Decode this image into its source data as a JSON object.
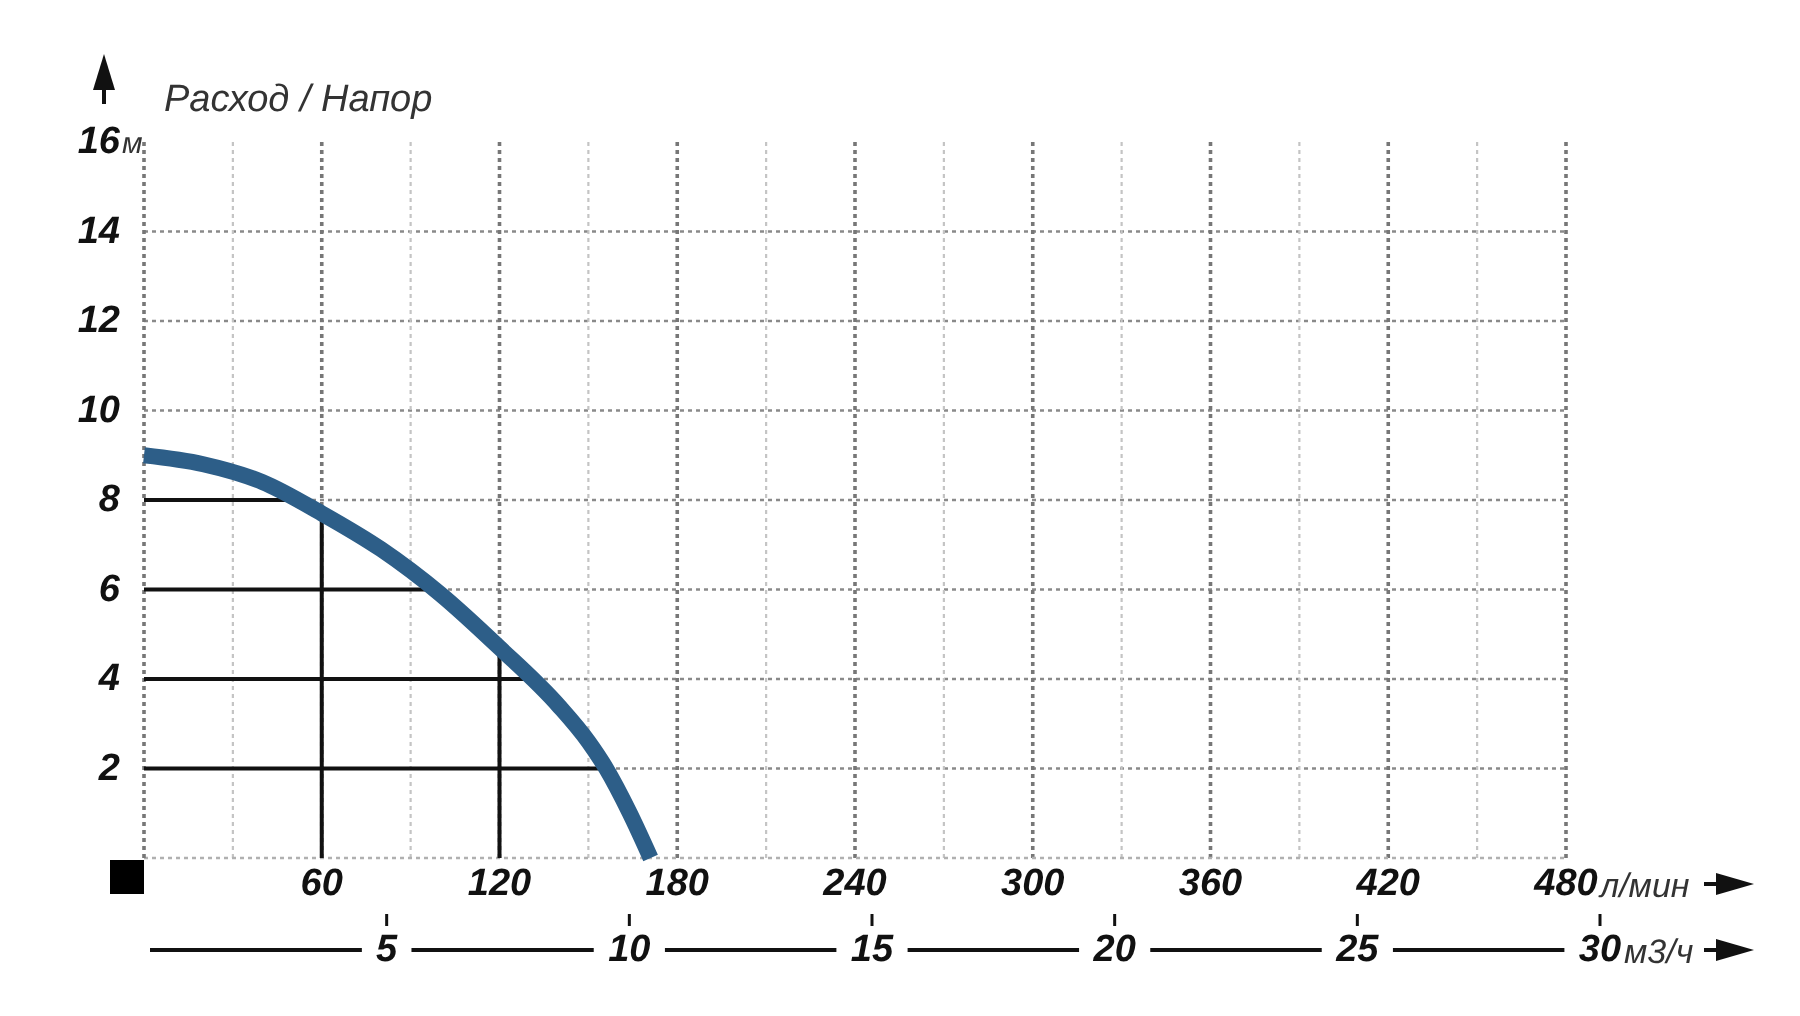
{
  "chart_data": {
    "type": "line",
    "title": "Расход / Напор",
    "xlabel": "л/мин",
    "ylabel": "м",
    "x2label": "м3/ч",
    "x": [
      0,
      20,
      40,
      60,
      80,
      100,
      120,
      140,
      150,
      156,
      164,
      171
    ],
    "series": [
      {
        "color": "#2d5e88",
        "values": [
          9,
          8.8,
          8.4,
          7.7,
          6.9,
          5.9,
          4.7,
          3.4,
          2.6,
          2,
          1,
          0
        ]
      }
    ],
    "xlim": [
      0,
      480
    ],
    "xticks": [
      {
        "value": 30,
        "label": null
      },
      60,
      {
        "value": 90,
        "label": null
      },
      120,
      {
        "value": 150,
        "label": null
      },
      180,
      {
        "value": 210,
        "label": null
      },
      240,
      {
        "value": 270,
        "label": null
      },
      300,
      {
        "value": 330,
        "label": null
      },
      360,
      {
        "value": 390,
        "label": null
      },
      420,
      {
        "value": 450,
        "label": null
      },
      480
    ],
    "ylim": [
      0,
      16
    ],
    "yticks": [
      2,
      4,
      6,
      8,
      10,
      12,
      14,
      16
    ],
    "x2lim": [
      0,
      30
    ],
    "x2ticks": [
      5,
      10,
      15,
      20,
      25,
      30
    ],
    "grid": true
  }
}
